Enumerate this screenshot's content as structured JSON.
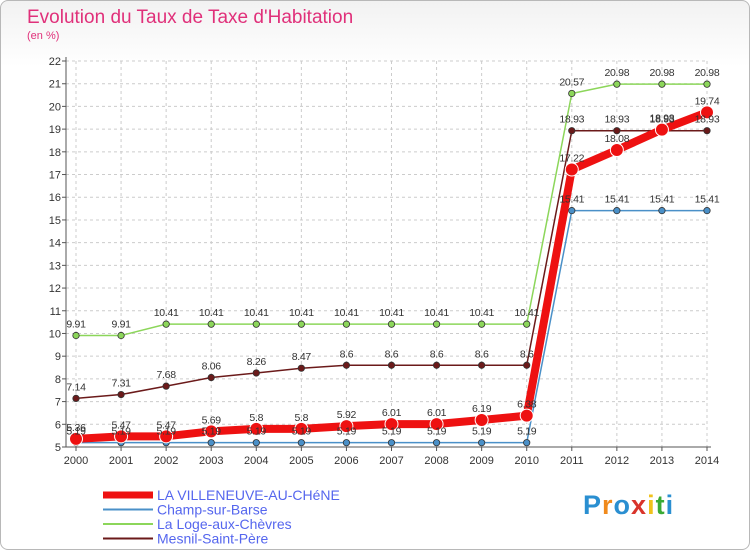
{
  "title": "Evolution du Taux de Taxe d'Habitation",
  "unit_label": "(en %)",
  "logo": {
    "text": "Proxiti",
    "colors": [
      "#2a8fd1",
      "#f08a1c",
      "#2a8fd1",
      "#d9342b",
      "#f0c21c",
      "#3aaa35",
      "#2a8fd1"
    ]
  },
  "colors": {
    "legend_text": "#5566ee",
    "title": "#e0307a"
  },
  "chart_data": {
    "type": "line",
    "title": "Evolution du Taux de Taxe d'Habitation",
    "ylabel": "(en %)",
    "xlabel": "",
    "ylim": [
      5,
      22
    ],
    "yticks": [
      "5",
      "6",
      "7",
      "8",
      "9",
      "10",
      "11",
      "12",
      "13",
      "14",
      "15",
      "16",
      "17",
      "18",
      "19",
      "20",
      "21",
      "22"
    ],
    "x": [
      "2000",
      "2001",
      "2002",
      "2003",
      "2004",
      "2005",
      "2006",
      "2007",
      "2008",
      "2009",
      "2010",
      "2011",
      "2012",
      "2013",
      "2014"
    ],
    "grid": true,
    "legend_position": "bottom-left",
    "series": [
      {
        "name": "La Loge-aux-Chèvres",
        "color": "#8cd65a",
        "width": 1.5,
        "values": [
          9.91,
          9.91,
          10.41,
          10.41,
          10.41,
          10.41,
          10.41,
          10.41,
          10.41,
          10.41,
          10.41,
          20.57,
          20.98,
          20.98,
          20.98
        ],
        "labels": [
          "9.91",
          "9.91",
          "10.41",
          "10.41",
          "10.41",
          "10.41",
          "10.41",
          "10.41",
          "10.41",
          "10.41",
          "10.41",
          "20.57",
          "20.98",
          "20.98",
          "20.98"
        ]
      },
      {
        "name": "Mesnil-Saint-Père",
        "color": "#6b1a1a",
        "width": 1.5,
        "values": [
          7.14,
          7.31,
          7.68,
          8.06,
          8.26,
          8.47,
          8.6,
          8.6,
          8.6,
          8.6,
          8.6,
          18.93,
          18.93,
          18.93,
          18.93
        ],
        "labels": [
          "7.14",
          "7.31",
          "7.68",
          "8.06",
          "8.26",
          "8.47",
          "8.6",
          "8.6",
          "8.6",
          "8.6",
          "8.6",
          "18.93",
          "18.93",
          "18.93",
          "18.93"
        ]
      },
      {
        "name": "Champ-sur-Barse",
        "color": "#4a90c8",
        "width": 1.5,
        "values": [
          5.19,
          5.19,
          5.19,
          5.19,
          5.19,
          5.19,
          5.19,
          5.19,
          5.19,
          5.19,
          5.19,
          15.41,
          15.41,
          15.41,
          15.41
        ],
        "labels": [
          "5.19",
          "5.19",
          "5.19",
          "5.19",
          "5.19",
          "5.19",
          "5.19",
          "5.19",
          "5.19",
          "5.19",
          "5.19",
          "15.41",
          "15.41",
          "15.41",
          "15.41"
        ]
      },
      {
        "name": "LA VILLENEUVE-AU-CHéNE",
        "color": "#ee1111",
        "width": 8,
        "values": [
          5.36,
          5.47,
          5.47,
          5.69,
          5.8,
          5.8,
          5.92,
          6.01,
          6.01,
          6.19,
          6.38,
          17.22,
          18.08,
          18.98,
          19.74
        ],
        "labels": [
          "5.36",
          "5.47",
          "5.47",
          "5.69",
          "5.8",
          "5.8",
          "5.92",
          "6.01",
          "6.01",
          "6.19",
          "6.38",
          "17.22",
          "18.08",
          "18.98",
          "19.74"
        ]
      }
    ],
    "legend": [
      {
        "name": "LA VILLENEUVE-AU-CHéNE",
        "color": "#ee1111",
        "width": 7
      },
      {
        "name": "Champ-sur-Barse",
        "color": "#4a90c8",
        "width": 2
      },
      {
        "name": "La Loge-aux-Chèvres",
        "color": "#8cd65a",
        "width": 2
      },
      {
        "name": "Mesnil-Saint-Père",
        "color": "#6b1a1a",
        "width": 2
      }
    ]
  }
}
